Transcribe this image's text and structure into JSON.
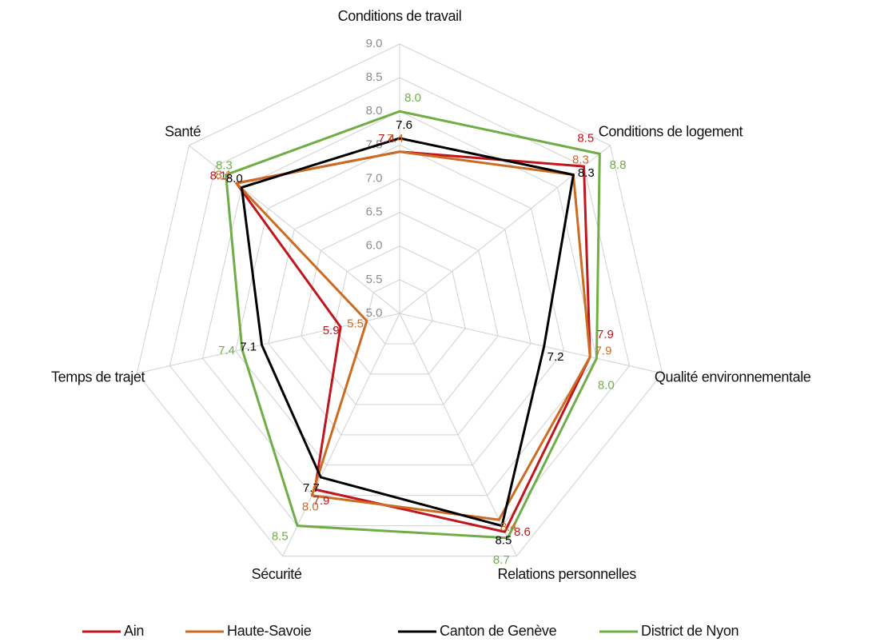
{
  "chart_data": {
    "type": "radar",
    "categories": [
      "Conditions de travail",
      "Conditions de logement",
      "Qualité environnementale",
      "Relations personnelles",
      "Sécurité",
      "Temps de trajet",
      "Santé"
    ],
    "series": [
      {
        "name": "Ain",
        "color": "#c0161e",
        "values": [
          7.4,
          8.5,
          7.9,
          8.6,
          7.9,
          5.9,
          8.1
        ],
        "value_labels": [
          "7.4",
          "8.5",
          "7.9",
          "8.6",
          "7.9",
          "5.9",
          "8.1"
        ]
      },
      {
        "name": "Haute-Savoie",
        "color": "#cc6b22",
        "values": [
          7.4,
          8.3,
          7.9,
          8.4,
          8.0,
          5.5,
          8.1
        ],
        "value_labels": [
          "7.4",
          "8.3",
          "7.9",
          "8.4",
          "8.0",
          "5.5",
          "8.1"
        ]
      },
      {
        "name": "Canton de Genève",
        "color": "#000000",
        "values": [
          7.6,
          8.3,
          7.2,
          8.5,
          7.7,
          7.1,
          8.0
        ],
        "value_labels": [
          "7.6",
          "8.3",
          "7.2",
          "8.5",
          "7.7",
          "7.1",
          "8.0"
        ]
      },
      {
        "name": "District de Nyon",
        "color": "#70ad47",
        "values": [
          8.0,
          8.8,
          8.0,
          8.7,
          8.5,
          7.4,
          8.3
        ],
        "value_labels": [
          "8.0",
          "8.8",
          "8.0",
          "8.7",
          "8.5",
          "7.4",
          "8.3"
        ]
      }
    ],
    "ylim": [
      5,
      9
    ],
    "yticks": [
      {
        "value": 5,
        "label": "5.0"
      },
      5.5,
      {
        "value": 6,
        "label": "6.0"
      },
      6.5,
      {
        "value": 7,
        "label": "7.0"
      },
      7.5,
      {
        "value": 8,
        "label": "8.0"
      },
      8.5,
      {
        "value": 9,
        "label": "9.0"
      }
    ],
    "grid": true,
    "legend": "bottom"
  }
}
